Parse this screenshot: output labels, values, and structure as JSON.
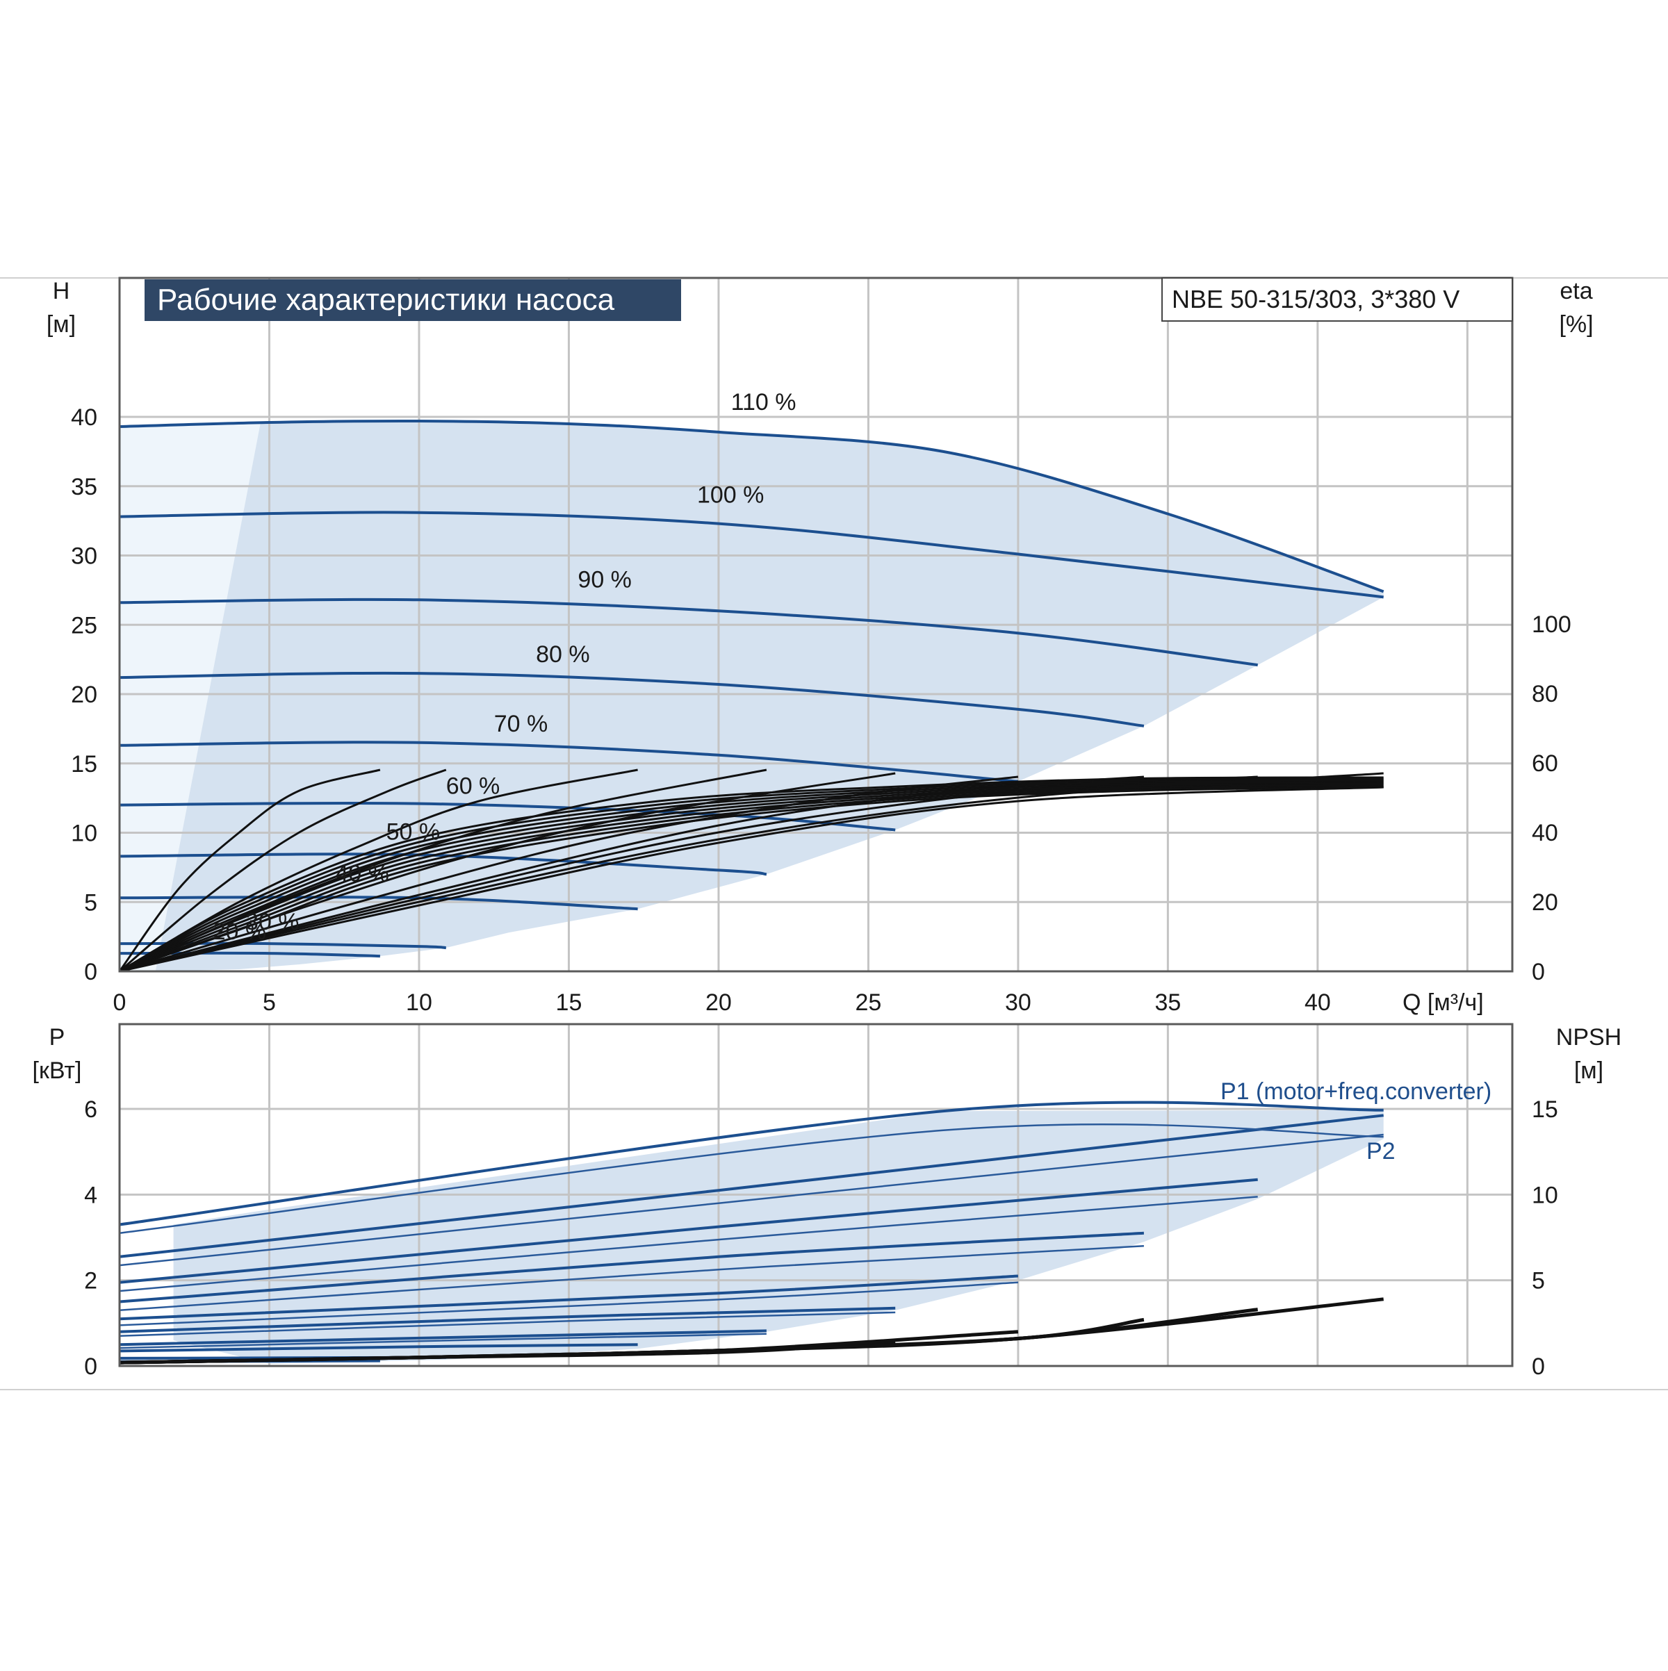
{
  "title": "Рабочие характеристики насоса",
  "model": "NBE 50-315/303, 3*380 V",
  "colors": {
    "curve_blue": "#1c4f8f",
    "area_fill": "#d5e2f0",
    "area_light": "#eef5fb",
    "title_bg": "#2f4766",
    "efficiency": "#111111"
  },
  "chart_data": [
    {
      "type": "line",
      "name": "head",
      "x_axis": {
        "label": "Q [м³/ч]",
        "ticks": [
          "0",
          "5",
          "10",
          "15",
          "20",
          "25",
          "30",
          "35",
          "40"
        ],
        "range": [
          0,
          46.5
        ]
      },
      "y_axis_left": {
        "label_line1": "H",
        "label_line2": "[м]",
        "ticks": [
          "0",
          "5",
          "10",
          "15",
          "20",
          "25",
          "30",
          "35",
          "40"
        ],
        "range": [
          0,
          48
        ]
      },
      "y_axis_right": {
        "label_line1": "eta",
        "label_line2": "[%]",
        "ticks": [
          "0",
          "20",
          "40",
          "60",
          "80",
          "100"
        ],
        "eta_max_at_H": 40
      },
      "grid": true,
      "speed_curves": [
        {
          "label": "110 %",
          "x": [
            0,
            5,
            10,
            15,
            20,
            27.5,
            35,
            42.2
          ],
          "y": [
            39.3,
            39.6,
            39.7,
            39.5,
            38.9,
            37.5,
            33,
            27.4
          ]
        },
        {
          "label": "100 %",
          "x": [
            0,
            10,
            20,
            30,
            42.2
          ],
          "y": [
            32.8,
            33.1,
            32.3,
            30.1,
            27.0
          ]
        },
        {
          "label": "90 %",
          "x": [
            0,
            10,
            20,
            30,
            38
          ],
          "y": [
            26.6,
            26.8,
            26.0,
            24.4,
            22.1
          ]
        },
        {
          "label": "80 %",
          "x": [
            0,
            10,
            20,
            30,
            34.2
          ],
          "y": [
            21.2,
            21.5,
            20.7,
            18.9,
            17.7
          ]
        },
        {
          "label": "70 %",
          "x": [
            0,
            10,
            20,
            30
          ],
          "y": [
            16.3,
            16.5,
            15.6,
            13.7
          ]
        },
        {
          "label": "60 %",
          "x": [
            0,
            10,
            20,
            25.9
          ],
          "y": [
            12.0,
            12.1,
            11.3,
            10.2
          ]
        },
        {
          "label": "50 %",
          "x": [
            0,
            10,
            20,
            21.6
          ],
          "y": [
            8.3,
            8.4,
            7.3,
            7.0
          ]
        },
        {
          "label": "40 %",
          "x": [
            0,
            10,
            17.3
          ],
          "y": [
            5.3,
            5.3,
            4.5
          ]
        },
        {
          "label": "30 %",
          "x": [
            0,
            5,
            10,
            10.9
          ],
          "y": [
            2.0,
            2.0,
            1.8,
            1.7
          ]
        },
        {
          "label": "20 %",
          "x": [
            0,
            5,
            8.7
          ],
          "y": [
            1.3,
            1.3,
            1.1
          ]
        }
      ],
      "efficiency_curves_eta_pct": [
        {
          "x": [
            0,
            2,
            4,
            6,
            8.7
          ],
          "y": [
            0,
            24,
            40,
            52,
            58
          ]
        },
        {
          "x": [
            0,
            3,
            6,
            9,
            10.9
          ],
          "y": [
            0,
            22,
            40,
            52,
            58
          ]
        },
        {
          "x": [
            0,
            4,
            8,
            12,
            17.3
          ],
          "y": [
            0,
            20,
            36,
            49,
            58
          ]
        },
        {
          "x": [
            0,
            5,
            10,
            15,
            21.6
          ],
          "y": [
            0,
            19,
            35,
            47,
            58
          ]
        },
        {
          "x": [
            0,
            6,
            12,
            18,
            25.9
          ],
          "y": [
            0,
            18,
            34,
            46,
            57
          ]
        },
        {
          "x": [
            0,
            8,
            16,
            24,
            30
          ],
          "y": [
            0,
            20,
            38,
            50,
            56
          ]
        },
        {
          "x": [
            0,
            10,
            20,
            28,
            34.2
          ],
          "y": [
            0,
            22,
            42,
            52,
            56
          ]
        },
        {
          "x": [
            0,
            10,
            20,
            30,
            38
          ],
          "y": [
            0,
            21,
            40,
            52,
            56
          ]
        },
        {
          "x": [
            0,
            10,
            20,
            30,
            42.2
          ],
          "y": [
            0,
            20,
            38,
            50,
            57
          ]
        },
        {
          "x": [
            0,
            10,
            20,
            30,
            42.2
          ],
          "y": [
            0,
            19,
            37,
            49,
            53
          ]
        }
      ]
    },
    {
      "type": "line",
      "name": "power",
      "x_axis": {
        "ticks": [
          "0",
          "5",
          "10",
          "15",
          "20",
          "25",
          "30",
          "35",
          "40"
        ],
        "range": [
          0,
          46.5
        ]
      },
      "y_axis_left": {
        "label_line1": "P",
        "label_line2": "[кВт]",
        "ticks": [
          "0",
          "2",
          "4",
          "6"
        ],
        "range": [
          0,
          8
        ]
      },
      "y_axis_right": {
        "label_line1": "NPSH",
        "label_line2": "[м]",
        "ticks": [
          "0",
          "5",
          "10",
          "15"
        ],
        "range": [
          0,
          20
        ]
      },
      "grid": true,
      "series_labels": {
        "p1": "P1 (motor+freq.converter)",
        "p2": "P2"
      },
      "p1_curves": [
        {
          "x": [
            0,
            27.5,
            42.2
          ],
          "y": [
            3.3,
            5.95,
            5.97
          ]
        },
        {
          "x": [
            0,
            20,
            42.2
          ],
          "y": [
            2.55,
            4.1,
            5.85
          ]
        },
        {
          "x": [
            0,
            20,
            38
          ],
          "y": [
            1.95,
            3.25,
            4.35
          ]
        },
        {
          "x": [
            0,
            20,
            34.2
          ],
          "y": [
            1.5,
            2.55,
            3.1
          ]
        },
        {
          "x": [
            0,
            20,
            30
          ],
          "y": [
            1.1,
            1.7,
            2.1
          ]
        },
        {
          "x": [
            0,
            15,
            25.9
          ],
          "y": [
            0.8,
            1.15,
            1.35
          ]
        },
        {
          "x": [
            0,
            10,
            21.6
          ],
          "y": [
            0.5,
            0.65,
            0.82
          ]
        },
        {
          "x": [
            0,
            10,
            17.3
          ],
          "y": [
            0.35,
            0.45,
            0.5
          ]
        },
        {
          "x": [
            0,
            10.9
          ],
          "y": [
            0.18,
            0.2
          ]
        },
        {
          "x": [
            0,
            8.7
          ],
          "y": [
            0.1,
            0.12
          ]
        }
      ],
      "p2_curves": [
        {
          "x": [
            0,
            27.5,
            42.2
          ],
          "y": [
            3.1,
            5.5,
            5.35
          ]
        },
        {
          "x": [
            0,
            20,
            42.2
          ],
          "y": [
            2.35,
            3.8,
            5.4
          ]
        },
        {
          "x": [
            0,
            20,
            38
          ],
          "y": [
            1.75,
            2.95,
            3.95
          ]
        },
        {
          "x": [
            0,
            20,
            34.2
          ],
          "y": [
            1.3,
            2.25,
            2.8
          ]
        },
        {
          "x": [
            0,
            20,
            30
          ],
          "y": [
            0.95,
            1.55,
            1.95
          ]
        },
        {
          "x": [
            0,
            15,
            25.9
          ],
          "y": [
            0.7,
            1.05,
            1.25
          ]
        },
        {
          "x": [
            0,
            10,
            21.6
          ],
          "y": [
            0.42,
            0.58,
            0.75
          ]
        }
      ],
      "npsh_curves": [
        {
          "x": [
            0,
            10,
            20,
            25.9
          ],
          "y": [
            0.2,
            0.5,
            0.8,
            1.4
          ]
        },
        {
          "x": [
            0,
            10,
            20,
            30
          ],
          "y": [
            0.2,
            0.5,
            0.9,
            2.0
          ]
        },
        {
          "x": [
            0,
            10,
            20,
            30,
            34.2
          ],
          "y": [
            0.2,
            0.5,
            0.9,
            1.6,
            2.7
          ]
        },
        {
          "x": [
            0,
            10,
            20,
            30,
            38
          ],
          "y": [
            0.2,
            0.5,
            0.9,
            1.6,
            3.3
          ]
        },
        {
          "x": [
            0,
            10,
            20,
            30,
            42.2
          ],
          "y": [
            0.2,
            0.5,
            0.9,
            1.6,
            3.9
          ]
        }
      ]
    }
  ]
}
